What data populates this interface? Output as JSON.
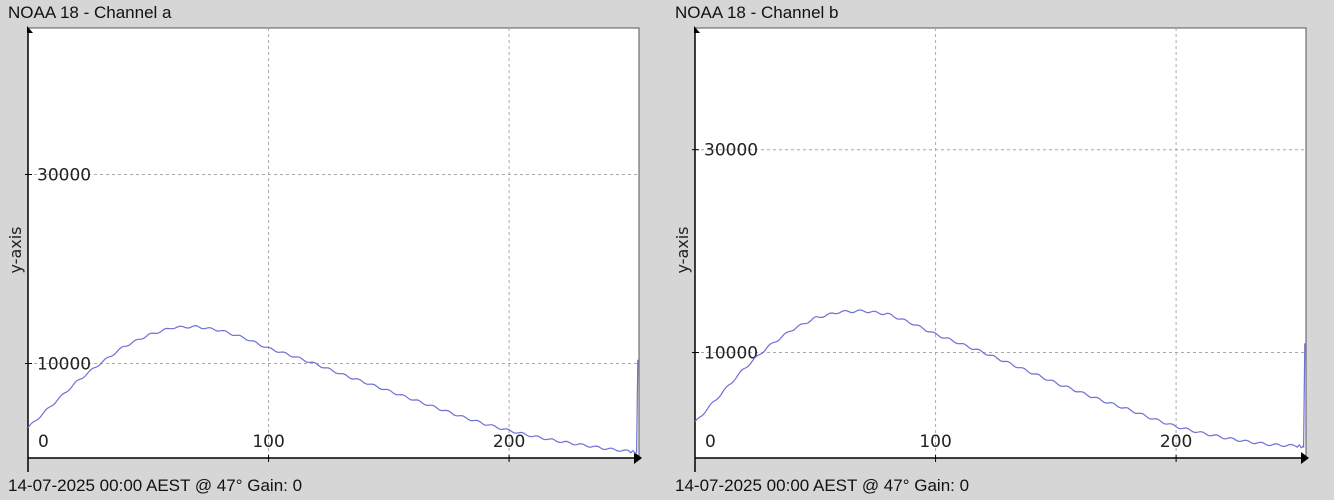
{
  "chart_data": [
    {
      "type": "line",
      "title": "NOAA 18 - Channel a",
      "footer": "14-07-2025 00:00 AEST @ 47° Gain: 0",
      "xlabel": "",
      "ylabel": "y-axis",
      "xlim": [
        0,
        254
      ],
      "ylim": [
        0,
        45500
      ],
      "xticks": [
        "0",
        "100",
        "200"
      ],
      "xtick_values": [
        0,
        100,
        200
      ],
      "yticks": [
        "10000",
        "30000"
      ],
      "ytick_values": [
        10000,
        30000
      ],
      "grid": true,
      "color": "#6f6fd8",
      "x": [
        0,
        10,
        20,
        30,
        40,
        50,
        60,
        70,
        80,
        90,
        100,
        110,
        120,
        130,
        140,
        150,
        160,
        170,
        180,
        190,
        200,
        210,
        220,
        230,
        240,
        250,
        253,
        253.5
      ],
      "y": [
        3200,
        5600,
        8000,
        10000,
        11800,
        13000,
        13800,
        13900,
        13500,
        12700,
        11600,
        10800,
        9900,
        8900,
        8000,
        7100,
        6200,
        5300,
        4400,
        3600,
        2900,
        2300,
        1800,
        1400,
        1000,
        700,
        600,
        10400
      ]
    },
    {
      "type": "line",
      "title": "NOAA 18 - Channel b",
      "footer": "14-07-2025 00:00 AEST @ 47° Gain: 0",
      "xlabel": "",
      "ylabel": "y-axis",
      "xlim": [
        0,
        254
      ],
      "ylim": [
        -400,
        42000
      ],
      "xticks": [
        "0",
        "100",
        "200"
      ],
      "xtick_values": [
        0,
        100,
        200
      ],
      "yticks": [
        "10000",
        "30000"
      ],
      "ytick_values": [
        10000,
        30000
      ],
      "grid": true,
      "color": "#6f6fd8",
      "x": [
        0,
        10,
        20,
        30,
        40,
        50,
        60,
        70,
        80,
        90,
        100,
        110,
        120,
        130,
        140,
        150,
        160,
        170,
        180,
        190,
        200,
        210,
        220,
        230,
        240,
        250,
        253,
        253.5
      ],
      "y": [
        3100,
        5700,
        8300,
        10500,
        12200,
        13400,
        14000,
        14100,
        13800,
        12900,
        11800,
        10900,
        10000,
        9000,
        8000,
        7000,
        6100,
        5200,
        4400,
        3500,
        2700,
        2100,
        1600,
        1200,
        900,
        800,
        700,
        10900
      ]
    }
  ]
}
